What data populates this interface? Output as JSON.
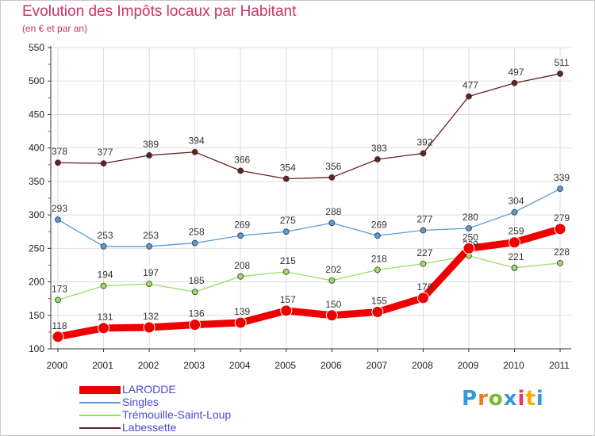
{
  "chart_data": {
    "type": "line",
    "title": "Evolution des Impôts locaux par Habitant",
    "subtitle": "(en € et par an)",
    "xlabel": "",
    "ylabel": "",
    "categories": [
      "2000",
      "2001",
      "2002",
      "2003",
      "2004",
      "2005",
      "2006",
      "2007",
      "2008",
      "2009",
      "2010",
      "2011"
    ],
    "ylim": [
      100,
      550
    ],
    "yticks": [
      100,
      150,
      200,
      250,
      300,
      350,
      400,
      450,
      500,
      550
    ],
    "series": [
      {
        "name": "Labessette",
        "color": "#662222",
        "values": [
          378,
          377,
          389,
          394,
          366,
          354,
          356,
          383,
          392,
          477,
          497,
          511
        ]
      },
      {
        "name": "Singles",
        "color": "#5b9bd5",
        "values": [
          293,
          253,
          253,
          258,
          269,
          275,
          288,
          269,
          277,
          280,
          304,
          339
        ]
      },
      {
        "name": "Trémouille-Saint-Loup",
        "color": "#99dd66",
        "values": [
          173,
          194,
          197,
          185,
          208,
          215,
          202,
          218,
          227,
          239,
          221,
          228
        ]
      },
      {
        "name": "LARODDE",
        "color": "#ee0000",
        "values": [
          118,
          131,
          132,
          136,
          139,
          157,
          150,
          155,
          176,
          250,
          259,
          279
        ]
      }
    ],
    "legend_order": [
      "LARODDE",
      "Singles",
      "Trémouille-Saint-Loup",
      "Labessette"
    ]
  },
  "logo": {
    "letters": [
      "P",
      "r",
      "o",
      "x",
      "i",
      "t",
      "i"
    ],
    "colors": [
      "#3399dd",
      "#ee7722",
      "#77bb33",
      "#3399dd",
      "#ee3366",
      "#ffaa00",
      "#3399dd"
    ]
  }
}
